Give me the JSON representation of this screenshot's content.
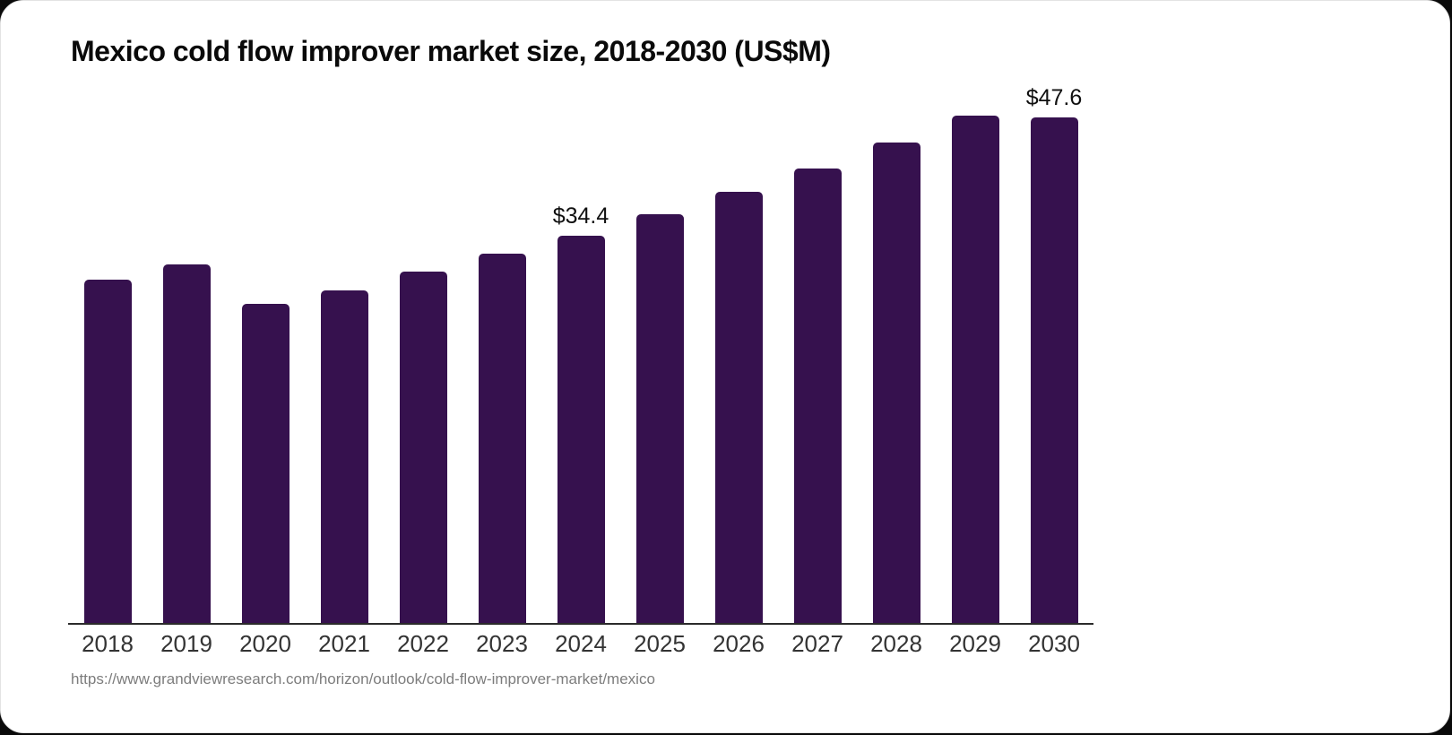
{
  "page": {
    "title": "Mexico cold flow improver market size, 2018-2030 (US$M)",
    "source_url": "https://www.grandviewresearch.com/horizon/outlook/cold-flow-improver-market/mexico"
  },
  "colors": {
    "bar": "#36114e",
    "axis_line": "#2b2b2b",
    "tick_label": "#333333",
    "value_label": "#101010",
    "title_text": "#0a0a0a",
    "source_text": "#7d7d7d",
    "card_background": "#ffffff"
  },
  "chart_data": {
    "type": "bar",
    "title": "Mexico cold flow improver market size, 2018-2030 (US$M)",
    "categories": [
      "2018",
      "2019",
      "2020",
      "2021",
      "2022",
      "2023",
      "2024",
      "2025",
      "2026",
      "2027",
      "2028",
      "2029",
      "2030"
    ],
    "values": [
      30.5,
      31.9,
      28.4,
      29.6,
      31.2,
      32.8,
      34.4,
      36.3,
      38.3,
      40.4,
      42.7,
      45.1,
      47.6
    ],
    "unit": "US$M",
    "annotations": [
      {
        "category": "2024",
        "text": "$34.4"
      },
      {
        "category": "2030",
        "text": "$47.6"
      }
    ],
    "ylim": [
      0,
      50
    ],
    "grid": false,
    "legend": "none",
    "xlabel": "",
    "ylabel": ""
  }
}
